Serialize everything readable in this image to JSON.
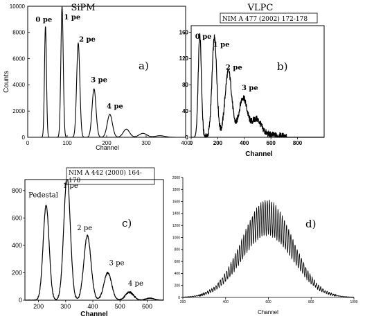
{
  "chart_data": [
    {
      "id": "a",
      "type": "line",
      "title": "SiPM",
      "panel_label": "a)",
      "ylabel": "Counts",
      "xlabel": "Channel",
      "xlim": [
        0,
        400
      ],
      "ylim": [
        0,
        10000
      ],
      "x_ticks": [
        0,
        100,
        200,
        300,
        400
      ],
      "y_ticks": [
        0,
        2000,
        4000,
        6000,
        8000,
        10000
      ],
      "peaks": [
        {
          "x": 45,
          "height": 8500,
          "width": 2.5
        },
        {
          "x": 87,
          "height": 10000,
          "width": 3
        },
        {
          "x": 128,
          "height": 7200,
          "width": 4
        },
        {
          "x": 168,
          "height": 3700,
          "width": 5
        },
        {
          "x": 208,
          "height": 1750,
          "width": 6.5
        },
        {
          "x": 250,
          "height": 620,
          "width": 8
        },
        {
          "x": 292,
          "height": 300,
          "width": 10
        },
        {
          "x": 335,
          "height": 120,
          "width": 12
        }
      ],
      "peak_labels": [
        {
          "text": "0 pe",
          "x": 20,
          "y": 8800
        },
        {
          "text": "1 pe",
          "x": 92,
          "y": 9000
        },
        {
          "text": "2 pe",
          "x": 130,
          "y": 7300
        },
        {
          "text": "3 pe",
          "x": 160,
          "y": 4200
        },
        {
          "text": "4 pe",
          "x": 200,
          "y": 2200
        }
      ]
    },
    {
      "id": "b",
      "type": "line",
      "title": "VLPC",
      "reference": "NIM A 477 (2002) 172-178",
      "panel_label": "b)",
      "xlabel": "Channel",
      "xlim": [
        0,
        1000
      ],
      "ylim": [
        0,
        170
      ],
      "x_ticks": [
        0,
        200,
        400,
        600,
        800
      ],
      "y_ticks": [
        0,
        40,
        80,
        120,
        160
      ],
      "peaks": [
        {
          "x": 65,
          "height": 155,
          "width": 12
        },
        {
          "x": 175,
          "height": 150,
          "width": 18
        },
        {
          "x": 280,
          "height": 98,
          "width": 25
        },
        {
          "x": 390,
          "height": 55,
          "width": 30
        },
        {
          "x": 490,
          "height": 22,
          "width": 35
        }
      ],
      "peak_labels": [
        {
          "text": "0 pe",
          "x": 30,
          "y": 150
        },
        {
          "text": "1 pe",
          "x": 165,
          "y": 138
        },
        {
          "text": "2 pe",
          "x": 260,
          "y": 103
        },
        {
          "text": "3 pe",
          "x": 380,
          "y": 72
        }
      ]
    },
    {
      "id": "c",
      "type": "line",
      "reference": "NIM A 442 (2000) 164-170",
      "panel_label": "c)",
      "xlabel": "Channel",
      "xlim": [
        150,
        660
      ],
      "ylim": [
        0,
        880
      ],
      "x_ticks": [
        200,
        300,
        400,
        500,
        600
      ],
      "y_ticks": [
        0,
        200,
        400,
        600,
        800
      ],
      "peaks": [
        {
          "x": 228,
          "height": 690,
          "width": 11
        },
        {
          "x": 305,
          "height": 900,
          "width": 12
        },
        {
          "x": 380,
          "height": 470,
          "width": 13
        },
        {
          "x": 455,
          "height": 200,
          "width": 14
        },
        {
          "x": 535,
          "height": 58,
          "width": 15
        },
        {
          "x": 610,
          "height": 15,
          "width": 15
        }
      ],
      "peak_labels": [
        {
          "text": "Pedestal",
          "x": 163,
          "y": 750
        },
        {
          "text": "1 pe",
          "x": 290,
          "y": 820
        },
        {
          "text": "2 pe",
          "x": 342,
          "y": 510
        },
        {
          "text": "3 pe",
          "x": 460,
          "y": 255
        },
        {
          "text": "4 pe",
          "x": 530,
          "y": 105
        }
      ]
    },
    {
      "id": "d",
      "type": "line",
      "panel_label": "d)",
      "xlabel": "Channel",
      "xlim": [
        200,
        1000
      ],
      "ylim": [
        0,
        2000
      ],
      "x_ticks": [
        200,
        400,
        600,
        800,
        1000
      ],
      "y_ticks": [
        0,
        200,
        400,
        600,
        800,
        1000,
        1200,
        1400,
        1600,
        1800,
        2000
      ],
      "envelope": {
        "center": 595,
        "sigma": 118,
        "amplitude": 1620,
        "period": 10
      }
    }
  ]
}
